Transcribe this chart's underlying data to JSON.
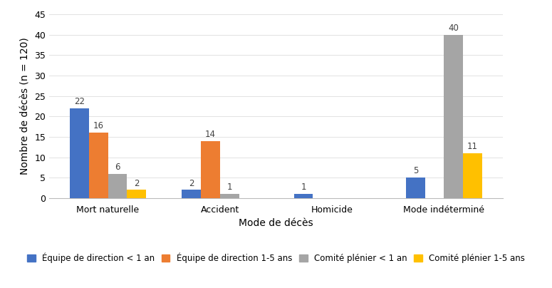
{
  "categories": [
    "Mort naturelle",
    "Accident",
    "Homicide",
    "Mode indéterminé"
  ],
  "series": [
    {
      "label": "Équipe de direction < 1 an",
      "color": "#4472C4",
      "values": [
        22,
        2,
        1,
        5
      ]
    },
    {
      "label": "Équipe de direction 1-5 ans",
      "color": "#ED7D31",
      "values": [
        16,
        14,
        0,
        0
      ]
    },
    {
      "label": "Comité plénier < 1 an",
      "color": "#A5A5A5",
      "values": [
        6,
        1,
        0,
        40
      ]
    },
    {
      "label": "Comité plénier 1-5 ans",
      "color": "#FFC000",
      "values": [
        2,
        0,
        0,
        11
      ]
    }
  ],
  "ylabel": "Nombre de décès (n = 120)",
  "xlabel": "Mode de décès",
  "ylim": [
    0,
    45
  ],
  "yticks": [
    0,
    5,
    10,
    15,
    20,
    25,
    30,
    35,
    40,
    45
  ],
  "bar_width": 0.17,
  "label_fontsize": 8.5,
  "axis_label_fontsize": 10,
  "tick_fontsize": 9,
  "legend_fontsize": 8.5,
  "background_color": "#FFFFFF",
  "bar_label_color": "#404040"
}
